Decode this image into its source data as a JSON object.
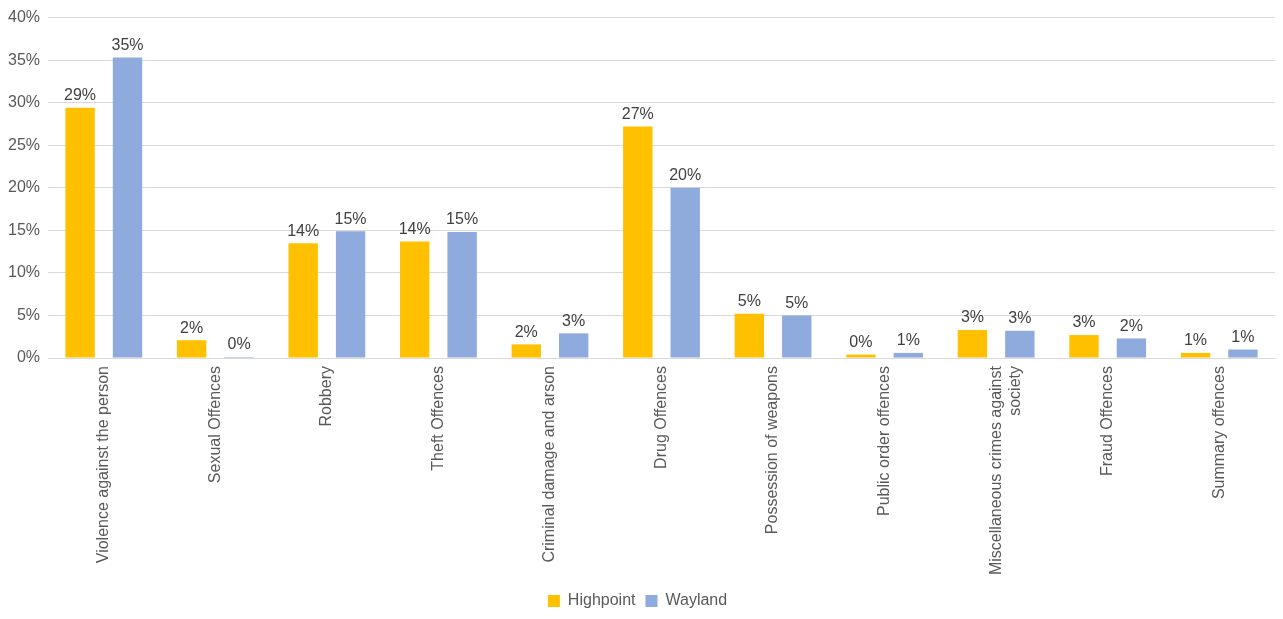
{
  "chart_data": {
    "type": "bar",
    "categories": [
      "Violence against the person",
      "Sexual Offences",
      "Robbery",
      "Theft Offences",
      "Criminal damage and arson",
      "Drug Offences",
      "Possession of weapons",
      "Public order offences",
      "Miscellaneous crimes against society",
      "Fraud Offences",
      "Summary offences"
    ],
    "series": [
      {
        "name": "Highpoint",
        "color": "#ffc000",
        "values": [
          29.4,
          2.1,
          13.5,
          13.7,
          1.6,
          27.2,
          5.2,
          0.4,
          3.3,
          2.7,
          0.6
        ],
        "value_labels": [
          "29%",
          "2%",
          "14%",
          "14%",
          "2%",
          "27%",
          "5%",
          "0%",
          "3%",
          "3%",
          "1%"
        ]
      },
      {
        "name": "Wayland",
        "color": "#8faadc",
        "values": [
          35.3,
          0,
          14.9,
          14.8,
          2.9,
          20.0,
          5.0,
          0.6,
          3.2,
          2.3,
          1.0
        ],
        "value_labels": [
          "35%",
          "0%",
          "15%",
          "15%",
          "3%",
          "20%",
          "5%",
          "1%",
          "3%",
          "2%",
          "1%"
        ]
      }
    ],
    "ylim": [
      0,
      40
    ],
    "yticks": [
      {
        "value": 0,
        "label": "0%"
      },
      {
        "value": 5,
        "label": "5%"
      },
      {
        "value": 10,
        "label": "10%"
      },
      {
        "value": 15,
        "label": "15%"
      },
      {
        "value": 20,
        "label": "20%"
      },
      {
        "value": 25,
        "label": "25%"
      },
      {
        "value": 30,
        "label": "30%"
      },
      {
        "value": 35,
        "label": "35%"
      },
      {
        "value": 40,
        "label": "40%"
      }
    ],
    "grid": "y",
    "legend": "bottom"
  }
}
